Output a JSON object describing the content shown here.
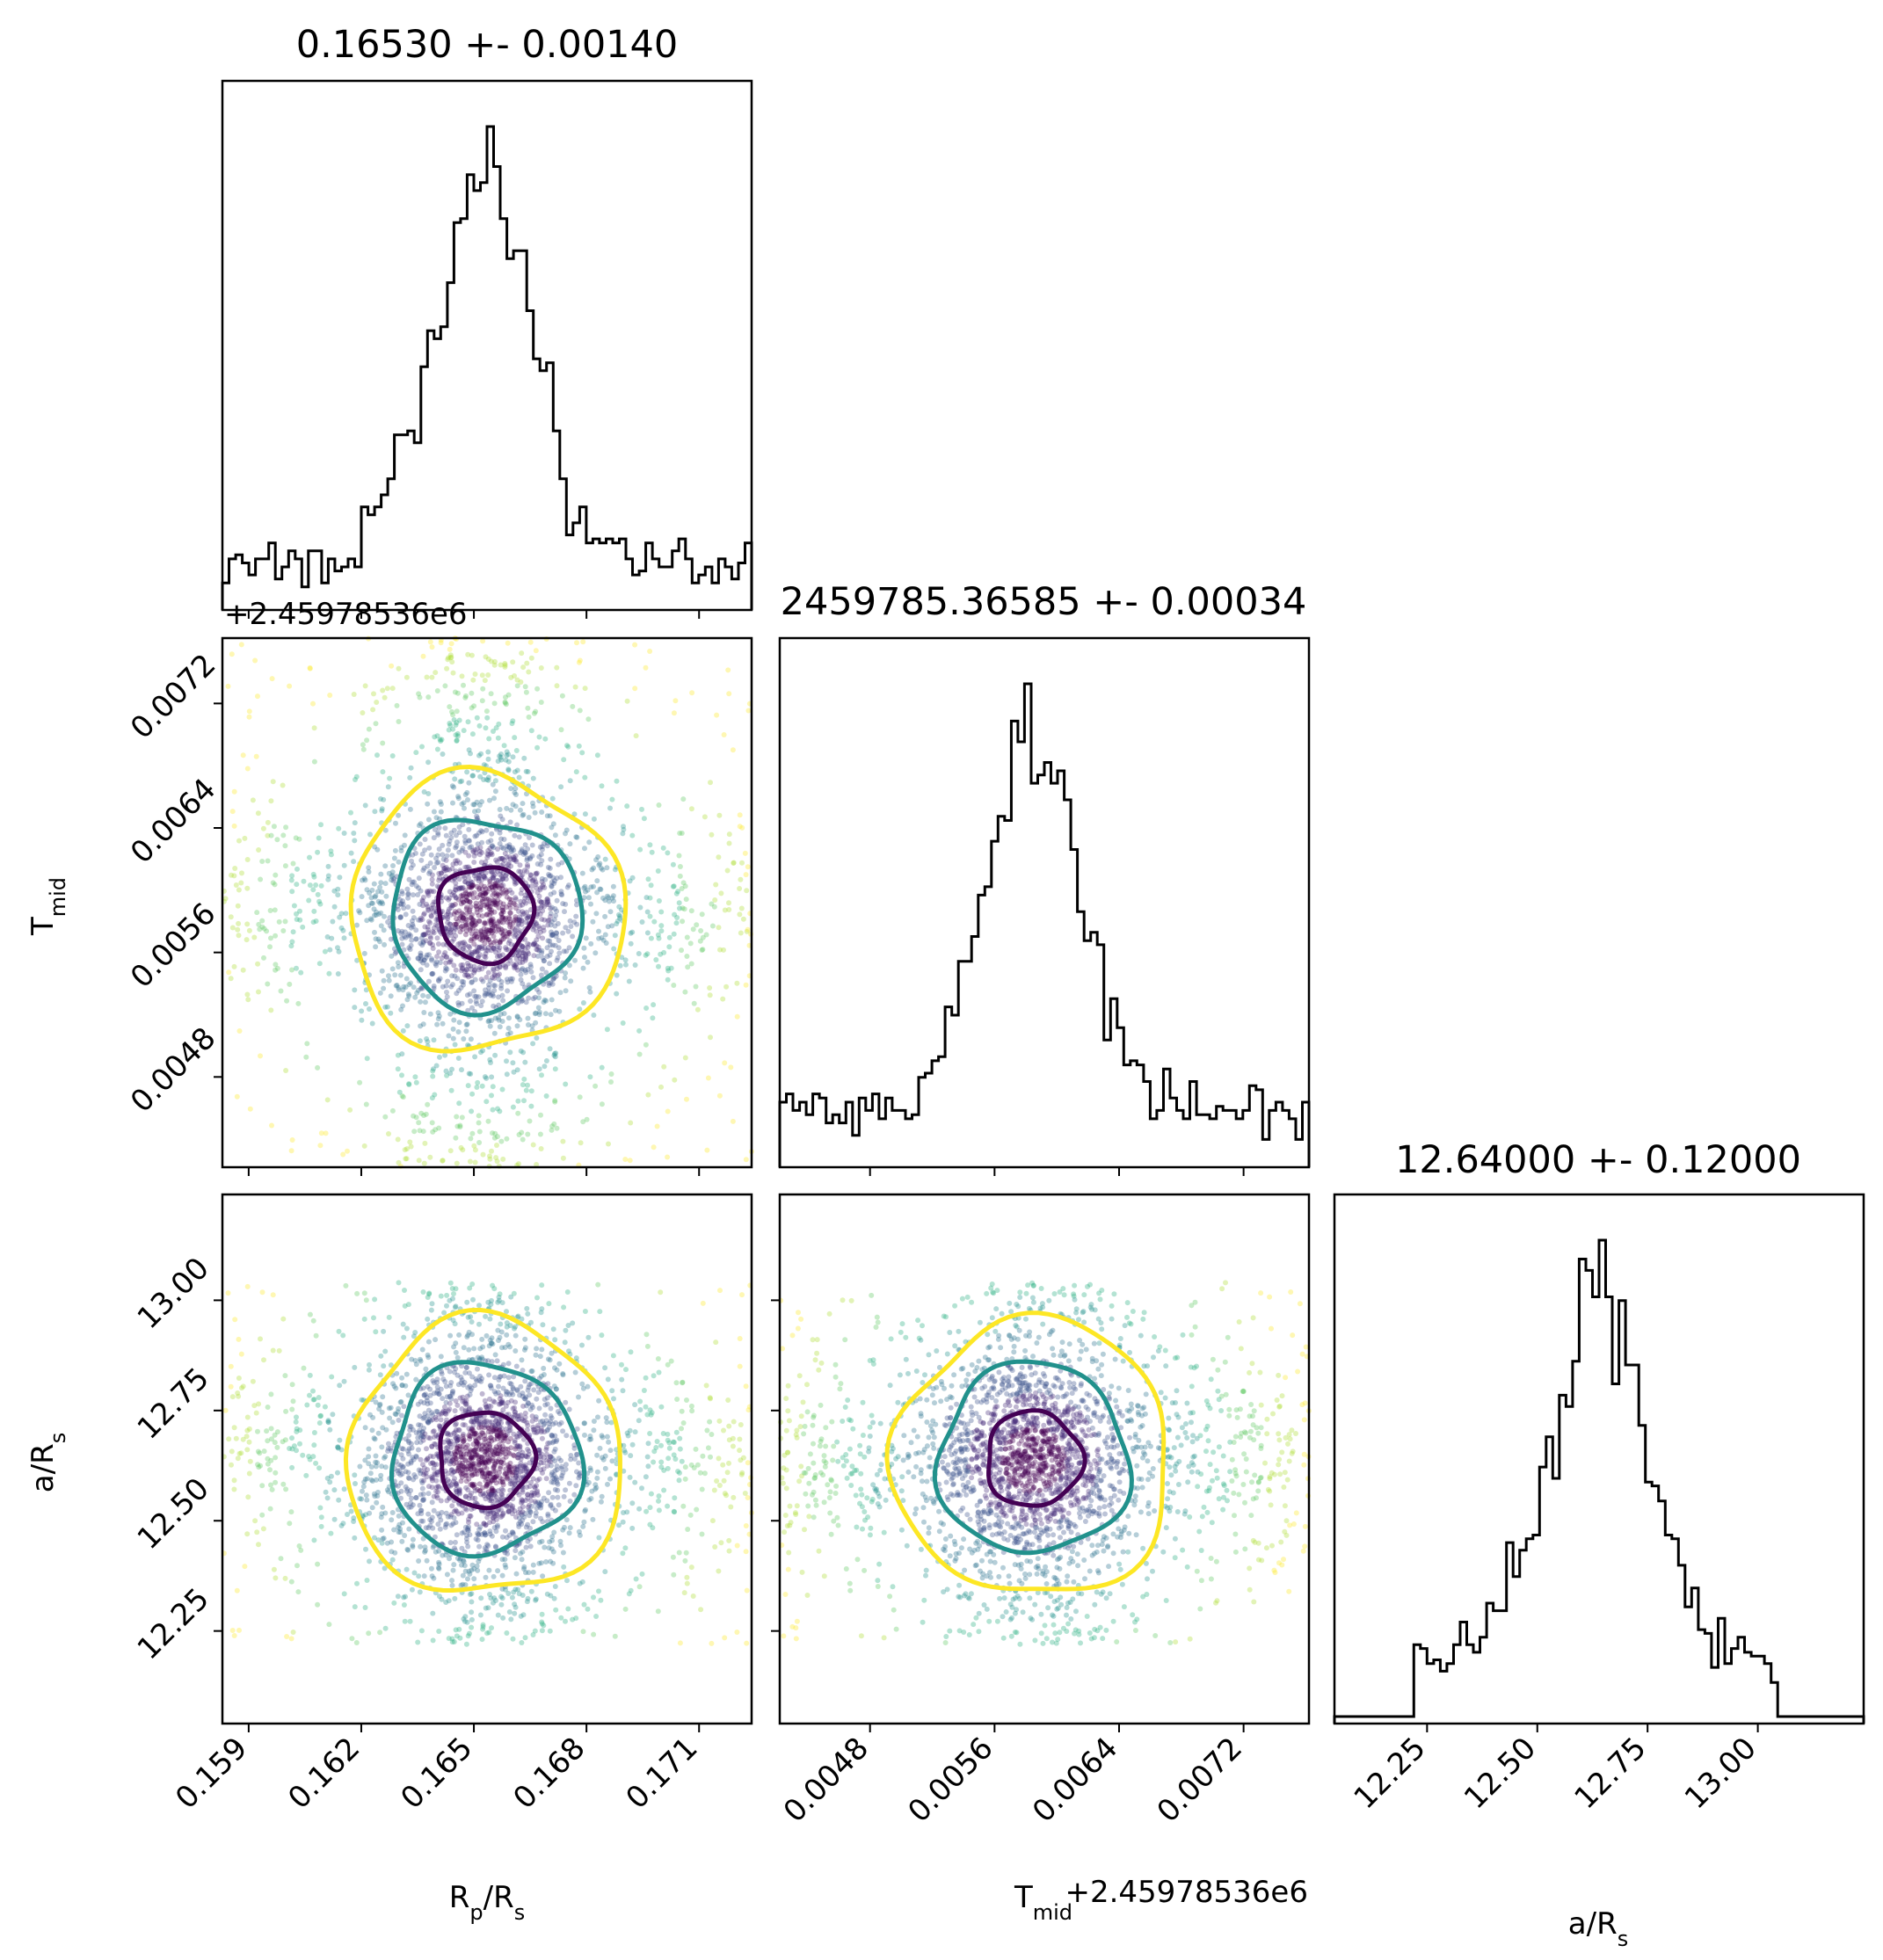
{
  "figure": {
    "type": "corner-plot",
    "background": "#ffffff",
    "colors": {
      "hist": "#000000",
      "contour_inner": "#440154",
      "contour_mid": "#21918c",
      "contour_outer": "#fde725",
      "points_colormap": "viridis"
    }
  },
  "labels": {
    "rp_rs": "R<sub>p</sub>/R<sub>s</sub>",
    "tmid": "T<sub>mid</sub>",
    "a_rs": "a/R<sub>s</sub>"
  },
  "titles": {
    "rp_rs": "0.16530 +- 0.00140",
    "tmid": "2459785.36585 +- 0.00034",
    "a_rs": "12.64000 +- 0.12000"
  },
  "offsets": {
    "tmid_y": "+2.45978536e6",
    "tmid_x": "+2.45978536e6"
  },
  "ticks": {
    "rp_rs": [
      "0.159",
      "0.162",
      "0.165",
      "0.168",
      "0.171"
    ],
    "tmid": [
      "0.0048",
      "0.0056",
      "0.0064",
      "0.0072"
    ],
    "a_rs": [
      "12.25",
      "12.50",
      "12.75",
      "13.00"
    ]
  },
  "chart_data": {
    "type": "scatter",
    "parameters": [
      {
        "name": "Rp/Rs",
        "mean": 0.1653,
        "std": 0.0014,
        "range": [
          0.1583,
          0.1724
        ]
      },
      {
        "name": "Tmid",
        "offset": 2459785.36,
        "mean": 0.00585,
        "std": 0.00034,
        "range": [
          0.00422,
          0.00762
        ]
      },
      {
        "name": "a/Rs",
        "mean": 12.64,
        "std": 0.12,
        "range": [
          12.04,
          13.24
        ]
      }
    ],
    "histograms": {
      "Rp/Rs": {
        "bin_range": [
          0.1583,
          0.1724
        ],
        "peak_bin_center": 0.1653,
        "shape": "sharp central peak with broad flat wings"
      },
      "Tmid": {
        "bin_range": [
          0.00422,
          0.00762
        ],
        "peak_bin_center": 0.00585,
        "shape": "sharp central peak with broad flat wings"
      },
      "a/Rs": {
        "bin_range": [
          12.04,
          13.24
        ],
        "peak_bin_center": 12.64,
        "support": [
          12.22,
          13.04
        ],
        "shape": "sharp central peak on flat plateau between 12.22 and 13.04"
      }
    },
    "contour_levels": [
      "inner",
      "middle",
      "outer"
    ],
    "grid": false,
    "legend": "none"
  }
}
